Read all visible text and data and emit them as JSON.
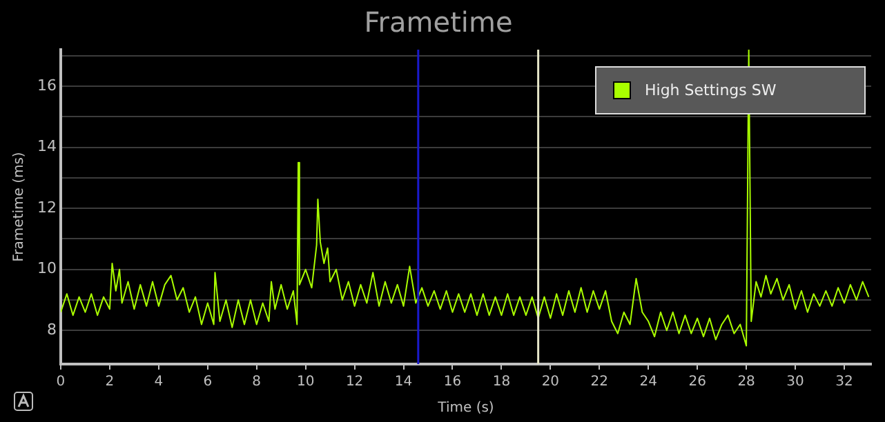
{
  "chart_data": {
    "type": "line",
    "title": "Frametime",
    "xlabel": "Time (s)",
    "ylabel": "Frametime (ms)",
    "x": [
      0,
      0.25,
      0.5,
      0.75,
      1,
      1.25,
      1.5,
      1.75,
      2,
      2.1,
      2.25,
      2.4,
      2.5,
      2.75,
      3,
      3.25,
      3.5,
      3.75,
      4,
      4.25,
      4.5,
      4.75,
      5,
      5.25,
      5.5,
      5.75,
      6,
      6.25,
      6.3,
      6.5,
      6.75,
      7,
      7.25,
      7.5,
      7.75,
      8,
      8.25,
      8.5,
      8.6,
      8.75,
      9,
      9.25,
      9.5,
      9.65,
      9.7,
      9.75,
      10,
      10.25,
      10.45,
      10.5,
      10.6,
      10.75,
      10.9,
      11,
      11.25,
      11.5,
      11.75,
      12,
      12.25,
      12.5,
      12.75,
      13,
      13.25,
      13.5,
      13.75,
      14,
      14.25,
      14.5,
      14.75,
      15,
      15.25,
      15.5,
      15.75,
      16,
      16.25,
      16.5,
      16.75,
      17,
      17.25,
      17.5,
      17.75,
      18,
      18.25,
      18.5,
      18.75,
      19,
      19.25,
      19.5,
      19.75,
      20,
      20.25,
      20.5,
      20.75,
      21,
      21.25,
      21.5,
      21.75,
      22,
      22.25,
      22.5,
      22.75,
      23,
      23.25,
      23.5,
      23.75,
      24,
      24.25,
      24.5,
      24.75,
      25,
      25.25,
      25.5,
      25.75,
      26,
      26.25,
      26.5,
      26.75,
      27,
      27.25,
      27.5,
      27.75,
      28,
      28.1,
      28.2,
      28.4,
      28.6,
      28.8,
      29,
      29.25,
      29.5,
      29.75,
      30,
      30.25,
      30.5,
      30.75,
      31,
      31.25,
      31.5,
      31.75,
      32,
      32.25,
      32.5,
      32.75,
      33
    ],
    "series": [
      {
        "name": "High Settings SW",
        "color": "#aaff00",
        "values": [
          8.6,
          9.2,
          8.5,
          9.1,
          8.6,
          9.2,
          8.5,
          9.1,
          8.7,
          10.2,
          9.3,
          10.0,
          8.9,
          9.6,
          8.7,
          9.5,
          8.8,
          9.6,
          8.8,
          9.5,
          9.8,
          9.0,
          9.4,
          8.6,
          9.1,
          8.2,
          8.9,
          8.2,
          9.9,
          8.3,
          9.0,
          8.1,
          9.0,
          8.2,
          9.0,
          8.2,
          8.9,
          8.3,
          9.6,
          8.7,
          9.5,
          8.7,
          9.3,
          8.2,
          13.5,
          9.5,
          10.0,
          9.4,
          10.8,
          12.3,
          10.9,
          10.2,
          10.7,
          9.6,
          10.0,
          9.0,
          9.6,
          8.8,
          9.5,
          8.9,
          9.9,
          8.8,
          9.6,
          8.9,
          9.5,
          8.8,
          10.1,
          8.9,
          9.4,
          8.8,
          9.3,
          8.7,
          9.3,
          8.6,
          9.2,
          8.6,
          9.2,
          8.5,
          9.2,
          8.5,
          9.1,
          8.5,
          9.2,
          8.5,
          9.1,
          8.5,
          9.1,
          8.4,
          9.1,
          8.4,
          9.2,
          8.5,
          9.3,
          8.6,
          9.4,
          8.6,
          9.3,
          8.7,
          9.3,
          8.3,
          7.9,
          8.6,
          8.2,
          9.7,
          8.6,
          8.3,
          7.8,
          8.6,
          8.0,
          8.6,
          7.9,
          8.5,
          7.9,
          8.4,
          7.8,
          8.4,
          7.7,
          8.2,
          8.5,
          7.9,
          8.2,
          7.5,
          17.2,
          8.3,
          9.6,
          9.1,
          9.8,
          9.2,
          9.7,
          9.0,
          9.5,
          8.7,
          9.3,
          8.6,
          9.2,
          8.8,
          9.3,
          8.8,
          9.4,
          8.9,
          9.5,
          9.0,
          9.6,
          9.1
        ]
      }
    ],
    "xlim": [
      0,
      33.1
    ],
    "xticks": [
      0,
      2,
      4,
      6,
      8,
      10,
      12,
      14,
      16,
      18,
      20,
      22,
      24,
      26,
      28,
      30,
      32
    ],
    "ylim": [
      6.9,
      17.2
    ],
    "yticks": [
      8,
      {
        "value": 9,
        "label": null
      },
      10,
      {
        "value": 11,
        "label": null
      },
      12,
      {
        "value": 13,
        "label": null
      },
      14,
      {
        "value": 15,
        "label": null
      },
      16,
      {
        "value": 17,
        "label": null
      }
    ],
    "ref_lines": [
      {
        "axis": "x",
        "value": 14.6,
        "color": "#1a1acc"
      },
      {
        "axis": "x",
        "value": 19.5,
        "color": "#e6e6c8"
      }
    ],
    "grid": "y",
    "legend": "top right",
    "marker": "none",
    "line_style": "solid"
  }
}
